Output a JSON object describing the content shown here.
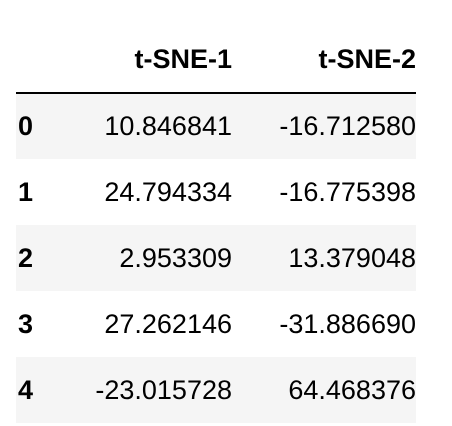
{
  "chart_data": {
    "type": "table",
    "columns": [
      "",
      "t-SNE-1",
      "t-SNE-2"
    ],
    "index": [
      "0",
      "1",
      "2",
      "3",
      "4"
    ],
    "rows": [
      [
        "10.846841",
        "-16.712580"
      ],
      [
        "24.794334",
        "-16.775398"
      ],
      [
        "2.953309",
        "13.379048"
      ],
      [
        "27.262146",
        "-31.886690"
      ],
      [
        "-23.015728",
        "64.468376"
      ]
    ],
    "striped_rows": true
  }
}
